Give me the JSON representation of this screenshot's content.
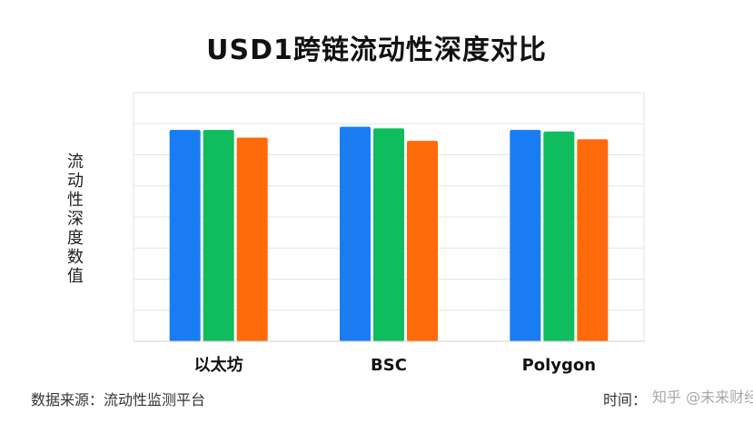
{
  "chart_data": {
    "type": "bar",
    "title": "USD1跨链流动性深度对比",
    "xlabel": "",
    "ylabel": "流动性深度数值",
    "categories": [
      "以太坊",
      "BSC",
      "Polygon"
    ],
    "series": [
      {
        "values": [
          6.8,
          6.9,
          6.8
        ],
        "color": "#1a7cf5"
      },
      {
        "values": [
          6.8,
          6.85,
          6.75
        ],
        "color": "#0fbd5f"
      },
      {
        "values": [
          6.55,
          6.45,
          6.5
        ],
        "color": "#ff6a0a"
      }
    ],
    "ylim": [
      0,
      8
    ],
    "grid": true,
    "legend": "none"
  },
  "footer": {
    "source": "数据来源：流动性监测平台",
    "time": "时间：",
    "watermark": "知乎 @未来财经"
  }
}
